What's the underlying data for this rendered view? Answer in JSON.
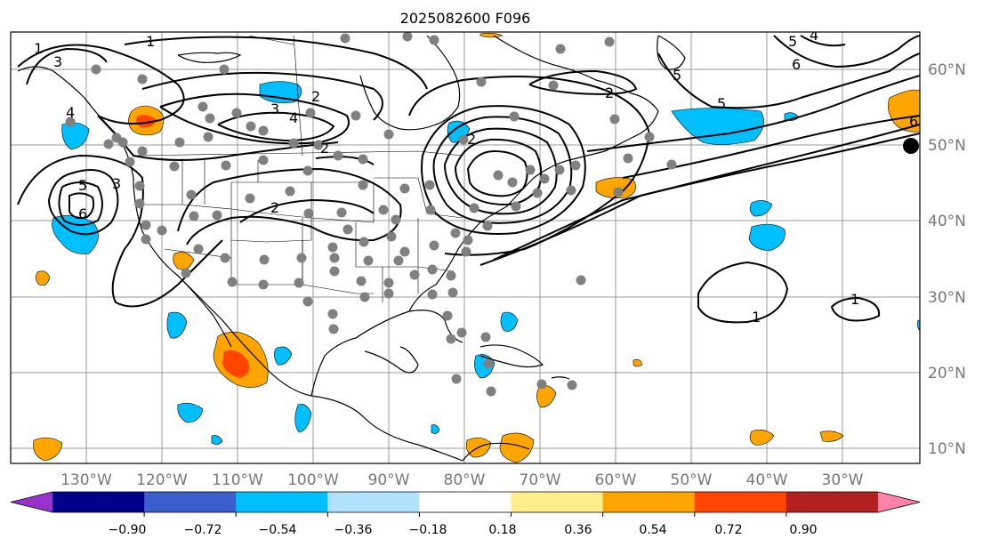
{
  "title": "2025082600 F096",
  "map": {
    "lon_labels": [
      "130°W",
      "120°W",
      "110°W",
      "100°W",
      "90°W",
      "80°W",
      "70°W",
      "60°W",
      "50°W",
      "40°W",
      "30°W"
    ],
    "lat_labels": [
      "60°N",
      "50°N",
      "40°N",
      "30°N",
      "20°N",
      "10°N"
    ],
    "contour_labels": [
      "1",
      "3",
      "4",
      "5",
      "6",
      "2",
      "3",
      "4",
      "2",
      "2",
      "2",
      "5",
      "3",
      "2",
      "6",
      "5",
      "4",
      "6",
      "5",
      "1",
      "1",
      "1"
    ]
  },
  "colorbar": {
    "ticks": [
      "−0.90",
      "−0.72",
      "−0.54",
      "−0.36",
      "−0.18",
      "0.18",
      "0.36",
      "0.54",
      "0.72",
      "0.90"
    ],
    "colors": [
      "#9932cc",
      "#00008b",
      "#3a5fcd",
      "#00bfff",
      "#b0e2ff",
      "#ffffff",
      "#ffec8b",
      "#ffa500",
      "#ff4500",
      "#b22222",
      "#ff82ab"
    ]
  }
}
